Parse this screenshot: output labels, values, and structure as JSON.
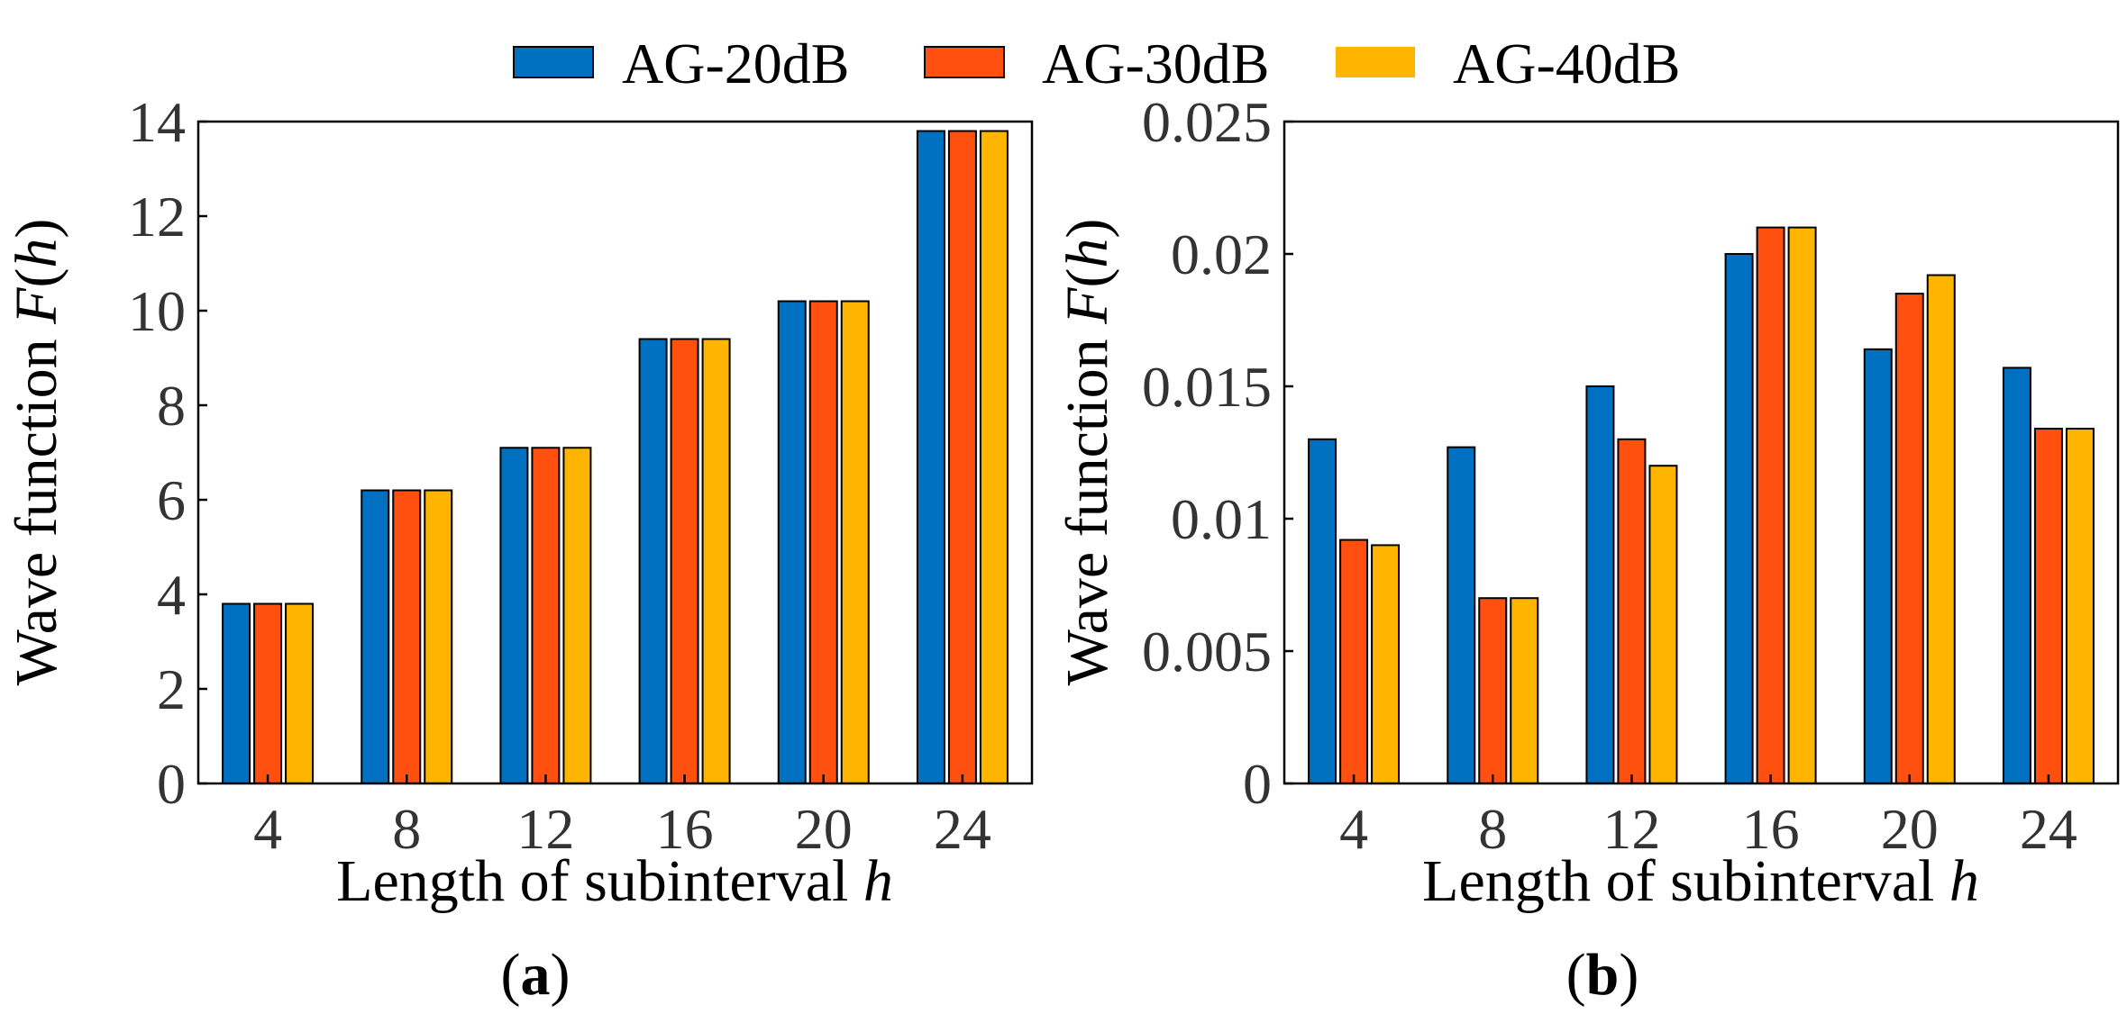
{
  "colors": {
    "AG-20dB": "#0070C0",
    "AG-30dB": "#FF5010",
    "AG-40dB": "#FFB400"
  },
  "legend": [
    "AG-20dB",
    "AG-30dB",
    "AG-40dB"
  ],
  "panels": [
    {
      "tag": "a",
      "label_open": "(",
      "label_close": ")"
    },
    {
      "tag": "b",
      "label_open": "(",
      "label_close": ")"
    }
  ],
  "chart_data": [
    {
      "type": "bar",
      "panel": "(a)",
      "categories": [
        "4",
        "8",
        "12",
        "16",
        "20",
        "24"
      ],
      "series": [
        {
          "name": "AG-20dB",
          "values": [
            3.8,
            6.2,
            7.1,
            9.4,
            10.2,
            13.8
          ]
        },
        {
          "name": "AG-30dB",
          "values": [
            3.8,
            6.2,
            7.1,
            9.4,
            10.2,
            13.8
          ]
        },
        {
          "name": "AG-40dB",
          "values": [
            3.8,
            6.2,
            7.1,
            9.4,
            10.2,
            13.8
          ]
        }
      ],
      "ylim": [
        0,
        14
      ],
      "yticks": [
        "0",
        "2",
        "4",
        "6",
        "8",
        "10",
        "12",
        "14"
      ],
      "ytick_values": [
        0,
        2,
        4,
        6,
        8,
        10,
        12,
        14
      ],
      "xlabel_text": "Length of subinterval ",
      "xlabel_var": "h",
      "ylabel_text": "Wave function ",
      "ylabel_var_F": "F",
      "ylabel_paren_open": "(",
      "ylabel_var_h": "h",
      "ylabel_paren_close": ")"
    },
    {
      "type": "bar",
      "panel": "(b)",
      "categories": [
        "4",
        "8",
        "12",
        "16",
        "20",
        "24"
      ],
      "series": [
        {
          "name": "AG-20dB",
          "values": [
            0.013,
            0.0127,
            0.015,
            0.02,
            0.0164,
            0.0157
          ]
        },
        {
          "name": "AG-30dB",
          "values": [
            0.0092,
            0.007,
            0.013,
            0.021,
            0.0185,
            0.0134
          ]
        },
        {
          "name": "AG-40dB",
          "values": [
            0.009,
            0.007,
            0.012,
            0.021,
            0.0192,
            0.0134
          ]
        }
      ],
      "ylim": [
        0,
        0.025
      ],
      "yticks": [
        "0",
        "0.005",
        "0.01",
        "0.015",
        "0.02",
        "0.025"
      ],
      "ytick_values": [
        0,
        0.005,
        0.01,
        0.015,
        0.02,
        0.025
      ],
      "xlabel_text": "Length of subinterval ",
      "xlabel_var": "h",
      "ylabel_text": "Wave function ",
      "ylabel_var_F": "F",
      "ylabel_paren_open": "(",
      "ylabel_var_h": "h",
      "ylabel_paren_close": ")"
    }
  ]
}
